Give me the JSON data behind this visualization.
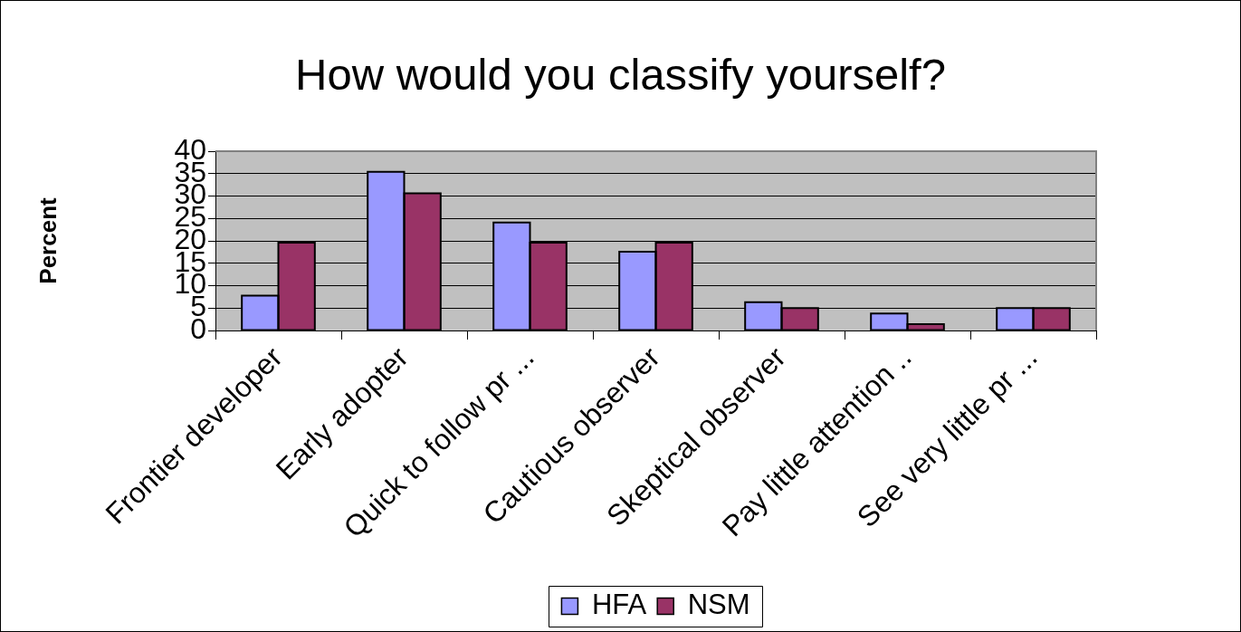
{
  "chart_data": {
    "type": "bar",
    "title": "How would you classify yourself?",
    "ylabel": "Percent",
    "categories": [
      "Frontier developer",
      "Early adopter",
      "Quick to follow pr ...",
      "Cautious observer",
      "Skeptical observer",
      "Pay little attention ..",
      "See very little pr ..."
    ],
    "series": [
      {
        "name": "HFA",
        "color": "#9999ff",
        "values": [
          7.8,
          35.4,
          24.1,
          17.6,
          6.3,
          3.8,
          5.0
        ]
      },
      {
        "name": "NSM",
        "color": "#993366",
        "values": [
          19.6,
          30.6,
          19.6,
          19.6,
          5.0,
          1.4,
          5.0
        ]
      }
    ],
    "ylim": [
      0,
      40
    ],
    "yticks": [
      0,
      5,
      10,
      15,
      20,
      25,
      30,
      35,
      40
    ],
    "grid": "y",
    "legend": "bottom"
  }
}
